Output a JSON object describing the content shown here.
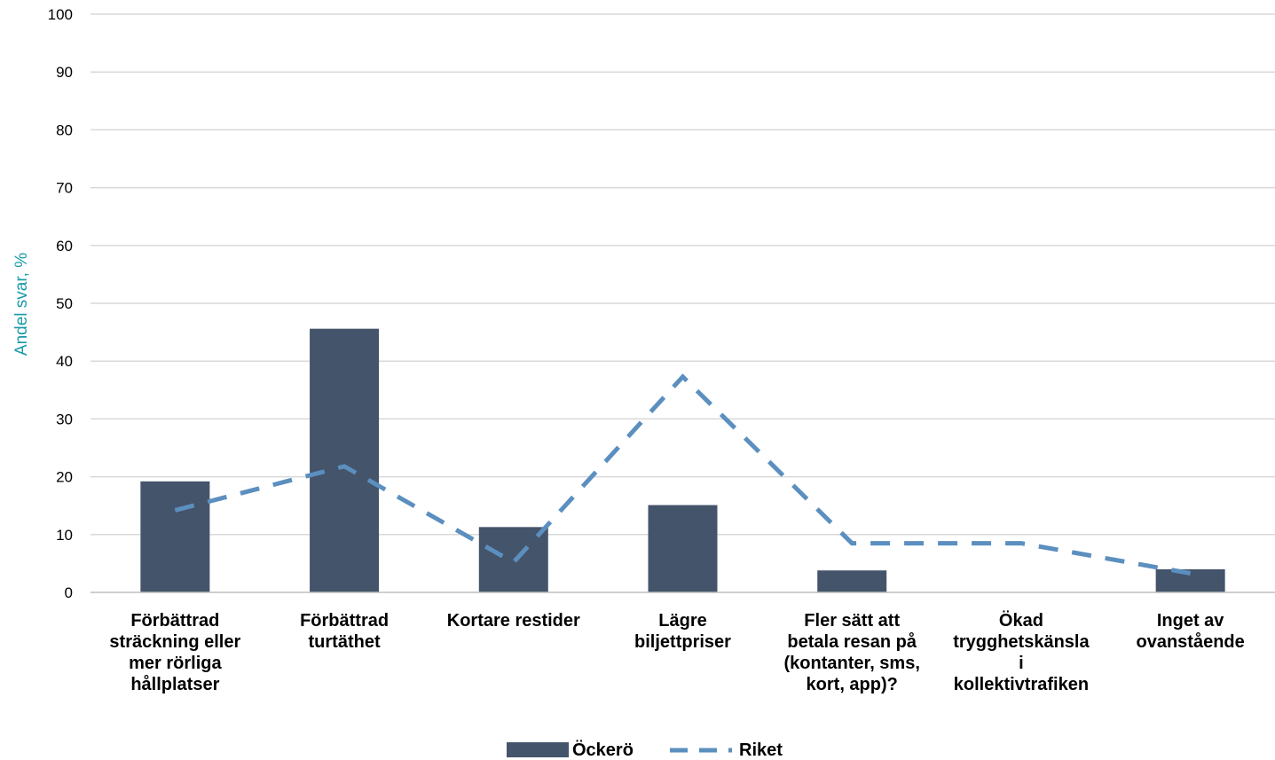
{
  "chart_data": {
    "type": "bar",
    "title": "",
    "xlabel": "",
    "ylabel": "Andel svar, %",
    "ylim": [
      0,
      100
    ],
    "yticks": [
      "0",
      "10",
      "20",
      "30",
      "40",
      "50",
      "60",
      "70",
      "80",
      "90",
      "100"
    ],
    "grid": true,
    "legend_position": "bottom",
    "categories": [
      [
        "Förbättrad",
        "sträckning eller",
        "mer rörliga",
        "hållplatser"
      ],
      [
        "Förbättrad",
        "turtäthet"
      ],
      [
        "Kortare restider"
      ],
      [
        "Lägre",
        "biljettpriser"
      ],
      [
        "Fler sätt att",
        "betala resan på",
        "(kontanter, sms,",
        "kort, app)?"
      ],
      [
        "Ökad",
        "trygghetskänsla",
        "i",
        "kollektivtrafiken"
      ],
      [
        "Inget av",
        "ovanstående"
      ]
    ],
    "series": [
      {
        "name": "Öckerö",
        "type": "bar",
        "color": "#44546a",
        "values": [
          19.2,
          45.6,
          11.3,
          15.1,
          3.8,
          0,
          4.0
        ]
      },
      {
        "name": "Riket",
        "type": "line",
        "style": "dashed",
        "color": "#5b8fbf",
        "values": [
          14.2,
          21.8,
          5.2,
          37.3,
          8.5,
          8.5,
          3.3
        ]
      }
    ]
  }
}
